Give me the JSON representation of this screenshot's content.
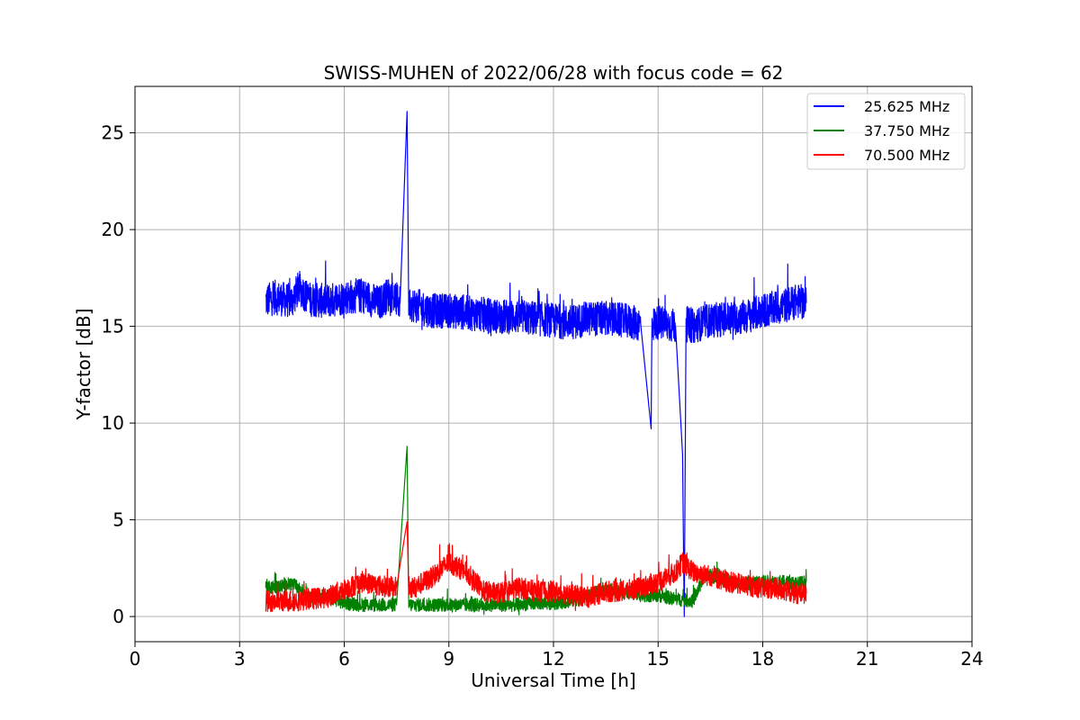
{
  "chart_data": {
    "type": "line",
    "title": "SWISS-MUHEN of 2022/06/28 with focus code = 62",
    "xlabel": "Universal Time [h]",
    "ylabel": "Y-factor [dB]",
    "xlim": [
      0,
      24
    ],
    "ylim": [
      -1.3,
      27.4
    ],
    "xticks": [
      0,
      3,
      6,
      9,
      12,
      15,
      18,
      21,
      24
    ],
    "yticks": [
      0,
      5,
      10,
      15,
      20,
      25
    ],
    "grid": true,
    "legend_position": "top-right",
    "series": [
      {
        "name": "25.625 MHz",
        "color": "#0000ff",
        "x": [
          3.75,
          4.0,
          4.5,
          4.7,
          5.0,
          5.5,
          6.0,
          6.5,
          7.0,
          7.3,
          7.6,
          7.8,
          7.85,
          8.0,
          8.5,
          9.0,
          9.5,
          10.0,
          10.5,
          11.0,
          11.5,
          12.0,
          12.5,
          13.0,
          13.5,
          14.0,
          14.5,
          14.8,
          14.82,
          15.0,
          15.5,
          15.7,
          15.75,
          15.8,
          16.0,
          16.3,
          16.5,
          17.0,
          17.5,
          18.0,
          18.5,
          19.0,
          19.25
        ],
        "y": [
          16.3,
          16.5,
          16.3,
          17.0,
          16.4,
          16.3,
          16.5,
          16.6,
          16.2,
          16.7,
          16.2,
          26.1,
          16.2,
          16.1,
          15.8,
          15.8,
          15.7,
          15.6,
          15.5,
          15.5,
          15.4,
          15.3,
          15.2,
          15.4,
          15.4,
          15.3,
          15.1,
          9.7,
          15.1,
          15.2,
          15.0,
          8.4,
          0.0,
          15.1,
          15.0,
          15.2,
          15.3,
          15.4,
          15.5,
          15.8,
          16.0,
          16.3,
          16.2
        ],
        "noise": 0.9
      },
      {
        "name": "37.750 MHz",
        "color": "#008000",
        "x": [
          3.75,
          4.0,
          4.5,
          5.0,
          5.5,
          6.0,
          6.5,
          7.0,
          7.5,
          7.8,
          7.85,
          8.0,
          8.5,
          9.0,
          9.5,
          10.0,
          10.5,
          11.0,
          11.5,
          12.0,
          12.5,
          13.0,
          13.5,
          14.0,
          14.5,
          15.0,
          15.5,
          16.0,
          16.3,
          16.5,
          17.0,
          17.5,
          18.0,
          18.5,
          19.0,
          19.25
        ],
        "y": [
          1.6,
          1.5,
          1.7,
          1.1,
          1.0,
          0.7,
          0.6,
          0.6,
          0.6,
          8.8,
          0.6,
          0.6,
          0.6,
          0.6,
          0.6,
          0.6,
          0.6,
          0.6,
          0.7,
          0.7,
          0.8,
          1.1,
          1.4,
          1.3,
          1.1,
          1.1,
          0.9,
          0.8,
          2.0,
          2.1,
          1.8,
          1.7,
          1.8,
          1.8,
          1.7,
          1.8
        ],
        "noise": 0.35
      },
      {
        "name": "70.500 MHz",
        "color": "#ff0000",
        "x": [
          3.75,
          4.0,
          4.5,
          5.0,
          5.5,
          6.0,
          6.5,
          7.0,
          7.5,
          7.8,
          7.85,
          8.0,
          8.5,
          9.0,
          9.5,
          10.0,
          10.5,
          11.0,
          11.5,
          12.0,
          12.5,
          13.0,
          13.5,
          14.0,
          14.5,
          15.0,
          15.5,
          15.7,
          16.0,
          16.5,
          17.0,
          17.5,
          18.0,
          18.5,
          19.0,
          19.25
        ],
        "y": [
          0.8,
          0.8,
          0.8,
          0.9,
          1.0,
          1.4,
          1.8,
          1.6,
          1.5,
          4.9,
          1.5,
          1.5,
          2.0,
          2.8,
          2.3,
          1.3,
          1.2,
          1.5,
          1.3,
          1.3,
          1.1,
          1.0,
          1.3,
          1.3,
          1.5,
          1.8,
          2.3,
          2.8,
          2.3,
          2.1,
          1.8,
          1.6,
          1.5,
          1.4,
          1.2,
          1.2
        ],
        "noise": 0.55
      }
    ]
  }
}
